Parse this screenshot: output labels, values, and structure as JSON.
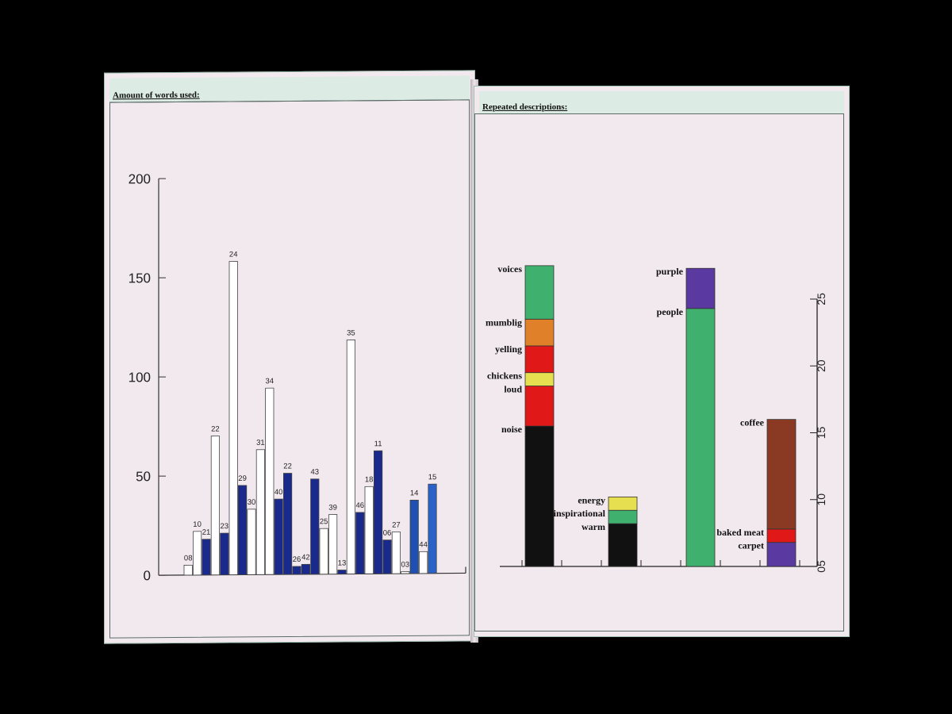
{
  "left": {
    "header": "Amount of words used:",
    "chart_data": {
      "type": "bar",
      "ylim": [
        0,
        200
      ],
      "yticks": [
        "200",
        "150",
        "100",
        "50",
        "0"
      ],
      "bars": [
        {
          "label": "08",
          "value": 5,
          "color": "#ffffff"
        },
        {
          "label": "10",
          "value": 22,
          "color": "#ffffff"
        },
        {
          "label": "21",
          "value": 18,
          "color": "#1a2a8c"
        },
        {
          "label": "22",
          "value": 70,
          "color": "#ffffff"
        },
        {
          "label": "23",
          "value": 21,
          "color": "#1a2a8c"
        },
        {
          "label": "24",
          "value": 158,
          "color": "#ffffff"
        },
        {
          "label": "29",
          "value": 45,
          "color": "#1a2a8c"
        },
        {
          "label": "30",
          "value": 33,
          "color": "#ffffff"
        },
        {
          "label": "31",
          "value": 63,
          "color": "#ffffff"
        },
        {
          "label": "34",
          "value": 94,
          "color": "#ffffff"
        },
        {
          "label": "40",
          "value": 38,
          "color": "#1a2a8c"
        },
        {
          "label": "22",
          "value": 51,
          "color": "#1a2a8c"
        },
        {
          "label": "26",
          "value": 4,
          "color": "#1a2a8c"
        },
        {
          "label": "42",
          "value": 5,
          "color": "#1a2a8c"
        },
        {
          "label": "43",
          "value": 48,
          "color": "#1a2a8c"
        },
        {
          "label": "25",
          "value": 23,
          "color": "#ffffff"
        },
        {
          "label": "39",
          "value": 30,
          "color": "#ffffff"
        },
        {
          "label": "13",
          "value": 2,
          "color": "#1a2a8c"
        },
        {
          "label": "35",
          "value": 118,
          "color": "#ffffff"
        },
        {
          "label": "46",
          "value": 31,
          "color": "#1a2a8c"
        },
        {
          "label": "18",
          "value": 44,
          "color": "#ffffff"
        },
        {
          "label": "11",
          "value": 62,
          "color": "#1a2a8c"
        },
        {
          "label": "06",
          "value": 17,
          "color": "#1a2a8c"
        },
        {
          "label": "27",
          "value": 21,
          "color": "#ffffff"
        },
        {
          "label": "03",
          "value": 1,
          "color": "#ffffff"
        },
        {
          "label": "14",
          "value": 37,
          "color": "#1f4fb0"
        },
        {
          "label": "44",
          "value": 11,
          "color": "#ffffff"
        },
        {
          "label": "15",
          "value": 45,
          "color": "#2a62c8"
        }
      ]
    }
  },
  "right": {
    "header": "Repeated descriptions:",
    "chart_data": {
      "type": "bar",
      "stacked": true,
      "ylim": [
        5,
        25
      ],
      "yticks": [
        "25",
        "20",
        "15",
        "10",
        "05"
      ],
      "stacks": [
        {
          "segments": [
            {
              "label": "noise",
              "value": 10.5,
              "color": "#111111"
            },
            {
              "label": "loud",
              "value": 3,
              "color": "#e01818"
            },
            {
              "label": "chickens",
              "value": 1,
              "color": "#e6e050"
            },
            {
              "label": "yelling",
              "value": 2,
              "color": "#e01818"
            },
            {
              "label": "mumblig",
              "value": 2,
              "color": "#e08028"
            },
            {
              "label": "voices",
              "value": 4,
              "color": "#3fb06e"
            }
          ]
        },
        {
          "segments": [
            {
              "label": "warm",
              "value": 3.2,
              "color": "#111111"
            },
            {
              "label": "inspirational",
              "value": 1,
              "color": "#3fb06e"
            },
            {
              "label": "energy",
              "value": 1,
              "color": "#e6e050"
            }
          ]
        },
        {
          "segments": [
            {
              "label": "people",
              "value": 19.3,
              "color": "#3fb06e"
            },
            {
              "label": "purple",
              "value": 3,
              "color": "#5a3aa0"
            }
          ]
        },
        {
          "segments": [
            {
              "label": "carpet",
              "value": 1.8,
              "color": "#5a3aa0"
            },
            {
              "label": "baked meat",
              "value": 1,
              "color": "#e01818"
            },
            {
              "label": "coffee",
              "value": 8.2,
              "color": "#8a3a22"
            }
          ]
        }
      ]
    }
  }
}
